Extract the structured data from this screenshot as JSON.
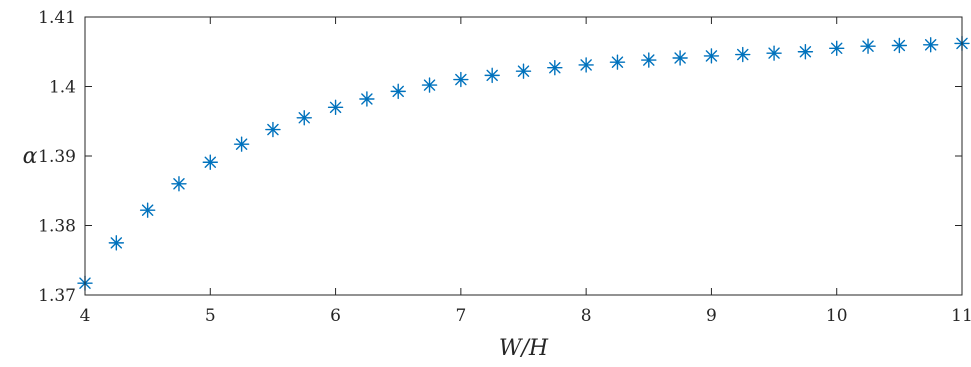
{
  "chart_data": {
    "type": "scatter",
    "xlabel": "W/H",
    "ylabel": "α",
    "xlim": [
      4,
      11
    ],
    "ylim": [
      1.37,
      1.41
    ],
    "x_ticks": [
      4,
      5,
      6,
      7,
      8,
      9,
      10,
      11
    ],
    "y_ticks": [
      1.37,
      1.38,
      1.39,
      1.4,
      1.41
    ],
    "x_tick_labels": [
      "4",
      "5",
      "6",
      "7",
      "8",
      "9",
      "10",
      "11"
    ],
    "y_tick_labels": [
      "1.37",
      "1.38",
      "1.39",
      "1.4",
      "1.41"
    ],
    "grid": false,
    "marker": "asterisk",
    "series": [
      {
        "color": "#0072BD",
        "x": [
          4,
          4.25,
          4.5,
          4.75,
          5,
          5.25,
          5.5,
          5.75,
          6,
          6.25,
          6.5,
          6.75,
          7,
          7.25,
          7.5,
          7.75,
          8,
          8.25,
          8.5,
          8.75,
          9,
          9.25,
          9.5,
          9.75,
          10,
          10.25,
          10.5,
          10.75,
          11
        ],
        "y": [
          1.3717,
          1.3775,
          1.3822,
          1.386,
          1.3891,
          1.3917,
          1.3938,
          1.3955,
          1.397,
          1.3982,
          1.3993,
          1.4002,
          1.401,
          1.4016,
          1.4022,
          1.4027,
          1.4031,
          1.4035,
          1.4038,
          1.4041,
          1.4044,
          1.4046,
          1.4048,
          1.405,
          1.4055,
          1.4058,
          1.4059,
          1.406,
          1.4062
        ]
      }
    ]
  }
}
